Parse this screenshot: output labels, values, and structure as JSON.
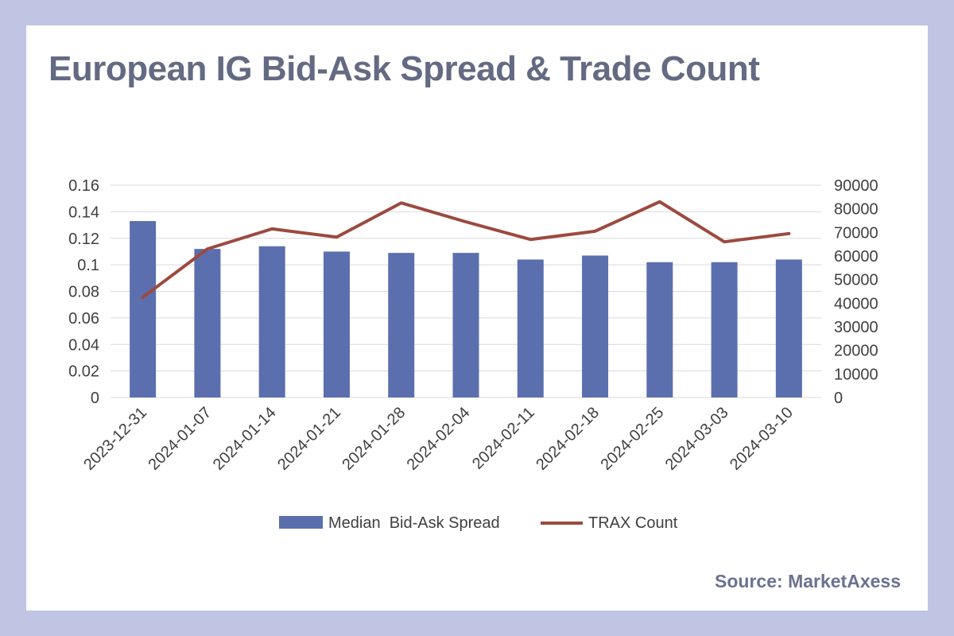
{
  "title": "European IG Bid-Ask Spread & Trade Count",
  "source": "Source: MarketAxess",
  "colors": {
    "bar": "#5b6fae",
    "line": "#9c4a3f",
    "grid": "#d9d9d9",
    "background": "#bfc5e3"
  },
  "chart_data": {
    "type": "bar",
    "title": "European IG Bid-Ask Spread & Trade Count",
    "categories": [
      "2023-12-31",
      "2024-01-07",
      "2024-01-14",
      "2024-01-21",
      "2024-01-28",
      "2024-02-04",
      "2024-02-11",
      "2024-02-18",
      "2024-02-25",
      "2024-03-03",
      "2024-03-10"
    ],
    "series": [
      {
        "name": "Median  Bid-Ask Spread",
        "type": "bar",
        "axis": "left",
        "values": [
          0.133,
          0.112,
          0.114,
          0.11,
          0.109,
          0.109,
          0.104,
          0.107,
          0.102,
          0.102,
          0.104
        ]
      },
      {
        "name": "TRAX Count",
        "type": "line",
        "axis": "right",
        "values": [
          42500,
          63000,
          71500,
          68000,
          82500,
          74500,
          67000,
          70500,
          83000,
          66000,
          69500
        ]
      }
    ],
    "y_left": {
      "ylim": [
        0,
        0.16
      ],
      "ticks": [
        "0.16",
        "0.14",
        "0.12",
        "0.1",
        "0.08",
        "0.06",
        "0.04",
        "0.02",
        "0"
      ]
    },
    "y_right": {
      "ylim": [
        0,
        90000
      ],
      "ticks": [
        "90000",
        "80000",
        "70000",
        "60000",
        "50000",
        "40000",
        "30000",
        "20000",
        "10000",
        "0"
      ]
    },
    "grid": true,
    "legend": "bottom"
  }
}
